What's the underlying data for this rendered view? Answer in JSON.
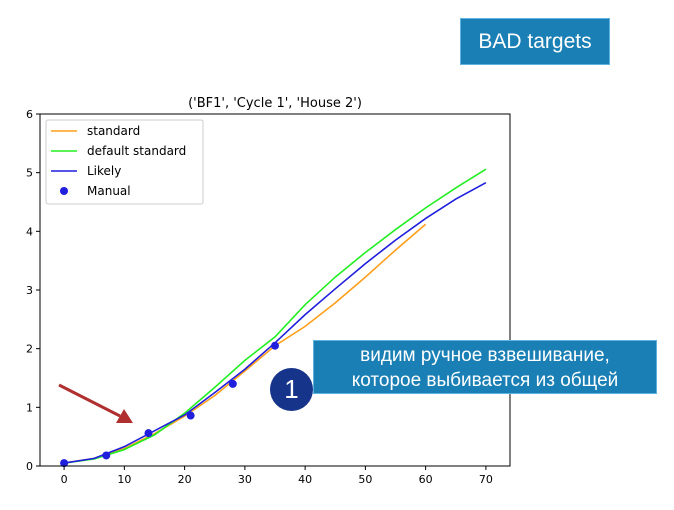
{
  "badge": {
    "label": "BAD targets"
  },
  "callout": {
    "number": "1",
    "line1": "видим ручное взвешивание,",
    "line2": "которое выбивается из общей"
  },
  "colors": {
    "standard": "#ff9f1c",
    "default_standard": "#22ee22",
    "likely": "#1f1fdd",
    "manual": "#1f1fdd",
    "arrow": "#b03030",
    "badge_bg": "#1a7fb5"
  },
  "chart_data": {
    "type": "line",
    "title": "('BF1', 'Cycle 1', 'House 2')",
    "xlabel": "",
    "ylabel": "",
    "xlim": [
      -4,
      74
    ],
    "ylim": [
      0,
      6
    ],
    "xticks": [
      0,
      10,
      20,
      30,
      40,
      50,
      60,
      70
    ],
    "yticks": [
      0,
      1,
      2,
      3,
      4,
      5,
      6
    ],
    "grid": false,
    "legend_position": "upper-left",
    "series": [
      {
        "name": "standard",
        "kind": "line",
        "x": [
          0,
          5,
          10,
          15,
          20,
          25,
          30,
          35,
          40,
          45,
          50,
          55,
          60
        ],
        "y": [
          0.05,
          0.13,
          0.3,
          0.55,
          0.85,
          1.2,
          1.62,
          2.05,
          2.38,
          2.78,
          3.22,
          3.68,
          4.12
        ]
      },
      {
        "name": "default standard",
        "kind": "line",
        "x": [
          0,
          5,
          10,
          15,
          20,
          25,
          30,
          35,
          40,
          45,
          50,
          55,
          60,
          65,
          70
        ],
        "y": [
          0.05,
          0.12,
          0.28,
          0.53,
          0.9,
          1.34,
          1.8,
          2.2,
          2.75,
          3.22,
          3.64,
          4.03,
          4.4,
          4.74,
          5.06
        ]
      },
      {
        "name": "Likely",
        "kind": "line",
        "x": [
          0,
          5,
          10,
          15,
          20,
          25,
          30,
          35,
          40,
          45,
          50,
          55,
          60,
          65,
          70
        ],
        "y": [
          0.05,
          0.13,
          0.33,
          0.6,
          0.87,
          1.25,
          1.65,
          2.1,
          2.58,
          3.02,
          3.45,
          3.85,
          4.22,
          4.55,
          4.83
        ]
      },
      {
        "name": "Manual",
        "kind": "scatter",
        "x": [
          0,
          7,
          14,
          21,
          28,
          35
        ],
        "y": [
          0.05,
          0.18,
          0.56,
          0.86,
          1.4,
          2.05
        ]
      }
    ]
  }
}
